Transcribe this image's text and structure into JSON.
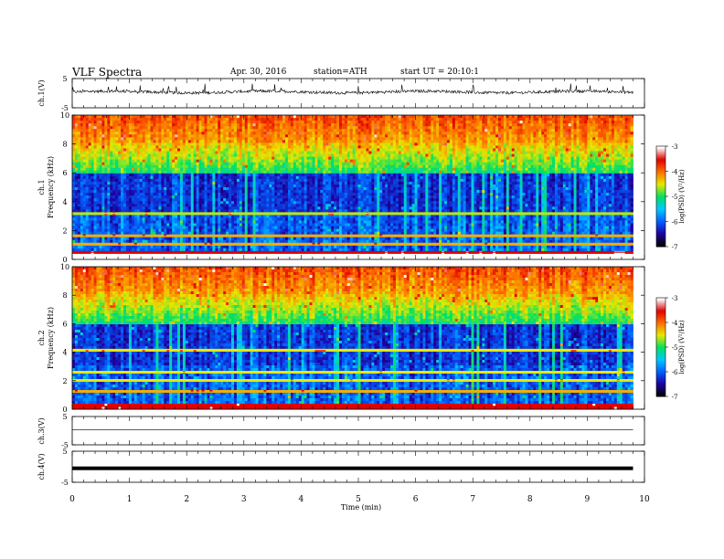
{
  "header": {
    "title": "VLF Spectra",
    "date": "Apr. 30, 2016",
    "station": "station=ATH",
    "start_ut": "start UT =  20:10:1"
  },
  "chart_data": [
    {
      "type": "line",
      "panel": "ch1-waveform",
      "ylabel": "ch.1(V)",
      "ylim": [
        -5,
        5
      ],
      "yticks": [
        5,
        -5
      ],
      "baseline": 0.4,
      "noise_amplitude": 0.5
    },
    {
      "type": "heatmap",
      "panel": "ch1-spectrogram",
      "ylabel": [
        "ch.1",
        "Frequency (kHz)"
      ],
      "ylim": [
        0,
        10
      ],
      "yticks": [
        0,
        2,
        4,
        6,
        8,
        10
      ],
      "color_scale": {
        "label": "log(PSD) (V²/Hz)",
        "range": [
          -7,
          -3
        ],
        "ticks": [
          -3,
          -4,
          -5,
          -6,
          -7
        ]
      },
      "bands": [
        {
          "f_khz": 0.2,
          "level": 8
        },
        {
          "f_khz": 0.5,
          "level": 7
        },
        {
          "f_khz": 1.0,
          "level": 5.5
        },
        {
          "f_khz": 1.6,
          "level": 5.5
        },
        {
          "f_khz": 3.2,
          "level": 4.8
        }
      ]
    },
    {
      "type": "heatmap",
      "panel": "ch2-spectrogram",
      "ylabel": [
        "ch.2",
        "Frequency (kHz)"
      ],
      "ylim": [
        0,
        10
      ],
      "yticks": [
        0,
        2,
        4,
        6,
        8,
        10
      ],
      "color_scale": {
        "label": "log(PSD) (V²/Hz)",
        "range": [
          -7,
          -3
        ],
        "ticks": [
          -3,
          -4,
          -5,
          -6,
          -7
        ]
      },
      "bands": [
        {
          "f_khz": 0.2,
          "level": 7
        },
        {
          "f_khz": 1.2,
          "level": 5.5
        },
        {
          "f_khz": 2.0,
          "level": 5
        },
        {
          "f_khz": 2.6,
          "level": 5
        },
        {
          "f_khz": 4.2,
          "level": 5
        }
      ]
    },
    {
      "type": "line",
      "panel": "ch3-waveform",
      "ylabel": "ch.3(V)",
      "ylim": [
        -5,
        5
      ],
      "yticks": [
        5,
        -5
      ],
      "baseline": 0.3
    },
    {
      "type": "line",
      "panel": "ch4-waveform",
      "ylabel": "ch.4(V)",
      "ylim": [
        -5,
        5
      ],
      "yticks": [
        5,
        -5
      ],
      "baseline": -0.5
    }
  ],
  "x_axis": {
    "label": "Time (min)",
    "range": [
      0,
      10
    ],
    "ticks": [
      0,
      1,
      2,
      3,
      4,
      5,
      6,
      7,
      8,
      9,
      10
    ],
    "data_end": 9.8
  },
  "colors": {
    "colormap": [
      "#000000",
      "#2000a0",
      "#0060ff",
      "#00c8ff",
      "#00e060",
      "#e8e800",
      "#ff7000",
      "#e00000",
      "#ffffff"
    ]
  }
}
